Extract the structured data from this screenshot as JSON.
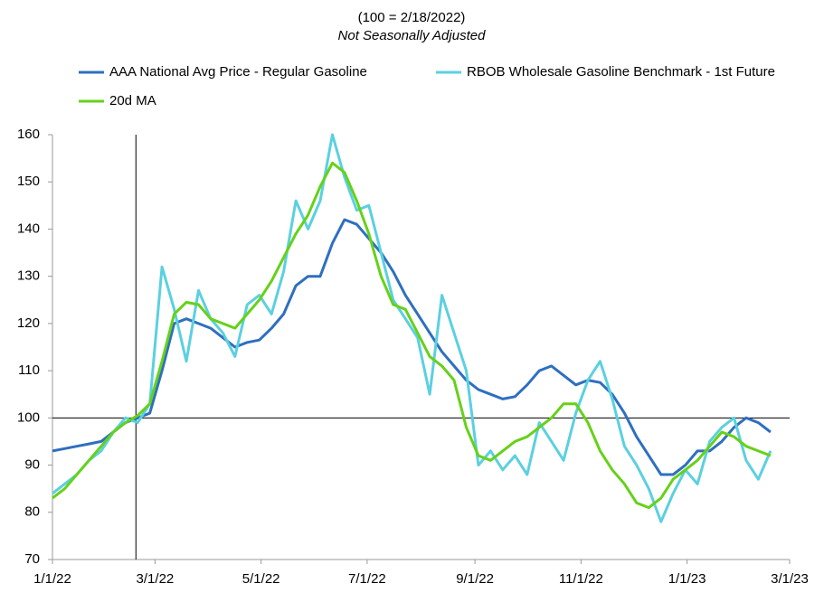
{
  "chart_data": {
    "type": "line",
    "title": "(100 = 2/18/2022)",
    "subtitle": "Not Seasonally Adjusted",
    "x": [
      "1/1/22",
      "1/8/22",
      "1/15/22",
      "1/22/22",
      "1/29/22",
      "2/5/22",
      "2/12/22",
      "2/19/22",
      "2/26/22",
      "3/5/22",
      "3/12/22",
      "3/19/22",
      "3/26/22",
      "4/2/22",
      "4/9/22",
      "4/16/22",
      "4/23/22",
      "4/30/22",
      "5/7/22",
      "5/14/22",
      "5/21/22",
      "5/28/22",
      "6/4/22",
      "6/11/22",
      "6/18/22",
      "6/25/22",
      "7/2/22",
      "7/9/22",
      "7/16/22",
      "7/23/22",
      "7/30/22",
      "8/6/22",
      "8/13/22",
      "8/20/22",
      "8/27/22",
      "9/3/22",
      "9/10/22",
      "9/17/22",
      "9/24/22",
      "10/1/22",
      "10/8/22",
      "10/15/22",
      "10/22/22",
      "10/29/22",
      "11/5/22",
      "11/12/22",
      "11/19/22",
      "11/26/22",
      "12/3/22",
      "12/10/22",
      "12/17/22",
      "12/24/22",
      "12/31/22",
      "1/7/23",
      "1/14/23",
      "1/21/23",
      "1/28/23",
      "2/4/23",
      "2/11/23",
      "2/18/23"
    ],
    "series": [
      {
        "name": "AAA National Avg Price - Regular Gasoline",
        "color": "#2e6fc0",
        "values": [
          93,
          93.5,
          94,
          94.5,
          95,
          97,
          99,
          100,
          101,
          110,
          120,
          121,
          120,
          119,
          117,
          115,
          116,
          116.5,
          119,
          122,
          128,
          130,
          130,
          137,
          142,
          141,
          138,
          135,
          131,
          126,
          122,
          118,
          114,
          111,
          108,
          106,
          105,
          104,
          104.5,
          107,
          110,
          111,
          109,
          107,
          108,
          107.5,
          105,
          101,
          96,
          92,
          88,
          88,
          90,
          93,
          93,
          95,
          98,
          100,
          99,
          97
        ]
      },
      {
        "name": "RBOB Wholesale Gasoline Benchmark - 1st Future",
        "color": "#5bd0e0",
        "values": [
          84,
          86,
          88,
          91,
          93,
          97,
          100,
          99,
          103,
          132,
          123,
          112,
          127,
          121,
          118,
          113,
          124,
          126,
          122,
          131,
          146,
          140,
          146,
          160,
          151,
          144,
          145,
          135,
          125,
          121,
          117,
          105,
          126,
          118,
          110,
          90,
          93,
          89,
          92,
          88,
          99,
          95,
          91,
          101,
          108,
          112,
          104,
          94,
          90,
          85,
          78,
          84,
          89,
          86,
          95,
          98,
          100,
          91,
          87,
          93
        ]
      },
      {
        "name": "20d MA",
        "color": "#66d11a",
        "values": [
          83,
          85,
          88,
          91,
          94,
          97,
          99,
          100.5,
          103,
          112,
          122,
          124.5,
          124,
          121,
          120,
          119,
          122,
          125,
          129,
          134,
          139,
          143,
          149,
          154,
          152,
          146,
          139,
          130,
          124,
          123,
          118,
          113,
          111,
          108,
          98,
          92,
          91,
          93,
          95,
          96,
          98,
          100,
          103,
          103,
          99,
          93,
          89,
          86,
          82,
          81,
          83,
          87,
          89,
          91,
          94,
          97,
          96,
          94,
          93,
          92
        ]
      }
    ],
    "xlim": [
      "1/1/22",
      "3/1/23"
    ],
    "xticks": [
      "1/1/22",
      "3/1/22",
      "5/1/22",
      "7/1/22",
      "9/1/22",
      "11/1/22",
      "1/1/23",
      "3/1/23"
    ],
    "ylim": [
      70,
      160
    ],
    "yticks": [
      70,
      80,
      90,
      100,
      110,
      120,
      130,
      140,
      150,
      160
    ],
    "hlines": [
      100
    ],
    "vlines": [
      "2/18/22"
    ]
  }
}
